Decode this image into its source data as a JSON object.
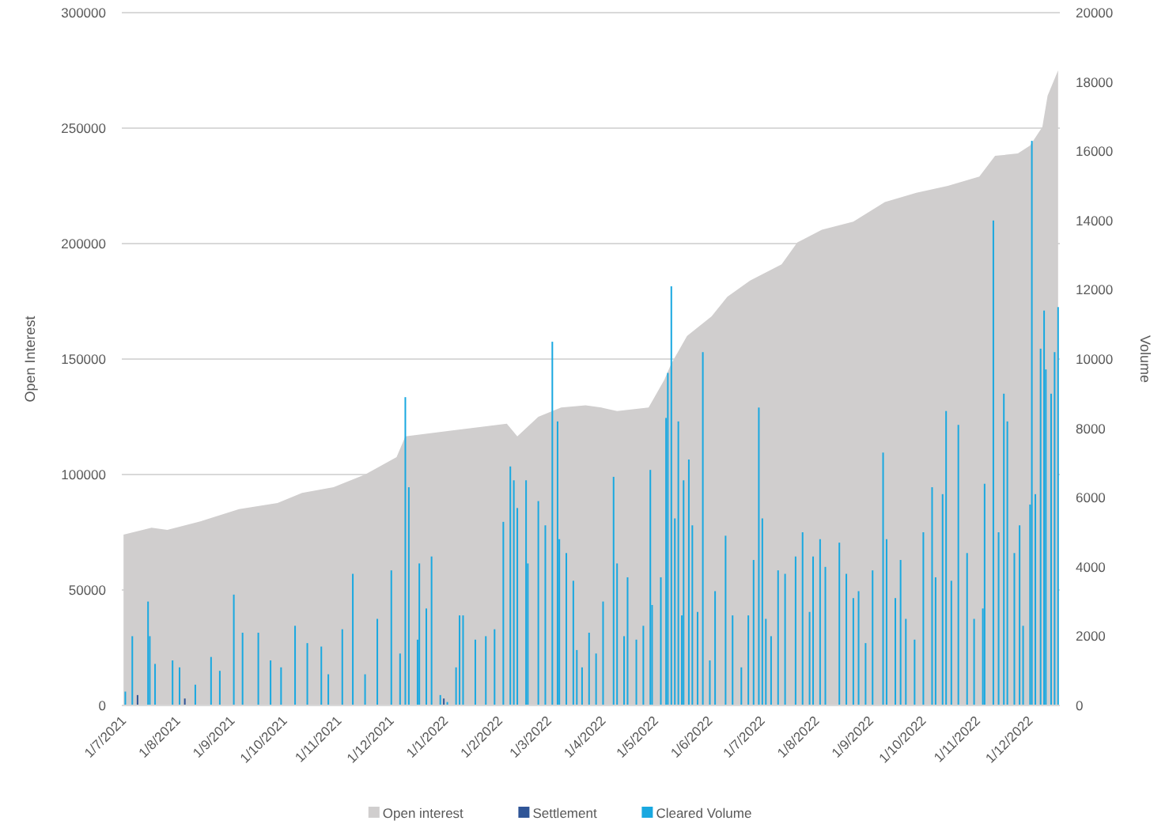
{
  "chart_data": {
    "type": "bar",
    "ylabel": "Open Interest",
    "y2label": "Volume",
    "xlim": [
      "2021-06-30",
      "2022-12-18"
    ],
    "xticks": [
      {
        "value": "2021-07-01",
        "label": "1/7/2021"
      },
      {
        "value": "2021-08-01",
        "label": "1/8/2021"
      },
      {
        "value": "2021-09-01",
        "label": "1/9/2021"
      },
      {
        "value": "2021-10-01",
        "label": "1/10/2021"
      },
      {
        "value": "2021-11-01",
        "label": "1/11/2021"
      },
      {
        "value": "2021-12-01",
        "label": "1/12/2021"
      },
      {
        "value": "2022-01-01",
        "label": "1/1/2022"
      },
      {
        "value": "2022-02-01",
        "label": "1/2/2022"
      },
      {
        "value": "2022-03-01",
        "label": "1/3/2022"
      },
      {
        "value": "2022-04-01",
        "label": "1/4/2022"
      },
      {
        "value": "2022-05-01",
        "label": "1/5/2022"
      },
      {
        "value": "2022-06-01",
        "label": "1/6/2022"
      },
      {
        "value": "2022-07-01",
        "label": "1/7/2022"
      },
      {
        "value": "2022-08-01",
        "label": "1/8/2022"
      },
      {
        "value": "2022-09-01",
        "label": "1/9/2022"
      },
      {
        "value": "2022-10-01",
        "label": "1/10/2022"
      },
      {
        "value": "2022-11-01",
        "label": "1/11/2022"
      },
      {
        "value": "2022-12-01",
        "label": "1/12/2022"
      }
    ],
    "ylim": [
      0,
      300000
    ],
    "yticks": [
      0,
      50000,
      100000,
      150000,
      200000,
      250000,
      300000
    ],
    "y2lim": [
      0,
      20000
    ],
    "y2ticks": [
      0,
      2000,
      4000,
      6000,
      8000,
      10000,
      12000,
      14000,
      16000,
      18000,
      20000
    ],
    "grid": "y",
    "legend": "bottom",
    "series": [
      {
        "name": "Open interest",
        "type": "area",
        "color": "#d0cece",
        "x": [
          "2021-07-01",
          "2021-07-17",
          "2021-07-26",
          "2021-08-13",
          "2021-09-05",
          "2021-09-27",
          "2021-10-11",
          "2021-10-29",
          "2021-11-16",
          "2021-12-04",
          "2021-12-09",
          "2022-01-04",
          "2022-02-05",
          "2022-02-11",
          "2022-02-23",
          "2022-03-08",
          "2022-03-22",
          "2022-03-31",
          "2022-04-09",
          "2022-04-27",
          "2022-05-06",
          "2022-05-10",
          "2022-05-19",
          "2022-06-02",
          "2022-06-11",
          "2022-06-24",
          "2022-07-12",
          "2022-07-21",
          "2022-08-04",
          "2022-08-22",
          "2022-09-09",
          "2022-09-27",
          "2022-10-15",
          "2022-11-02",
          "2022-11-11",
          "2022-11-24",
          "2022-12-01",
          "2022-12-08",
          "2022-12-11",
          "2022-12-17"
        ],
        "values": [
          74000,
          77000,
          76000,
          79500,
          85000,
          87700,
          92000,
          94500,
          100000,
          107500,
          116500,
          119000,
          122000,
          116500,
          125000,
          129000,
          130000,
          129000,
          127500,
          129000,
          141000,
          148000,
          160000,
          168500,
          177000,
          184000,
          191000,
          200500,
          206000,
          209500,
          218000,
          222000,
          225000,
          229000,
          238000,
          239000,
          242500,
          250500,
          264000,
          275000
        ]
      },
      {
        "name": "Settlement",
        "axis": "y2",
        "color": "#2f5597",
        "x": [
          "2021-07-09",
          "2021-08-05",
          "2021-12-31"
        ],
        "values": [
          300,
          200,
          200
        ]
      },
      {
        "name": "Cleared Volume",
        "axis": "y2",
        "color": "#19a8e0",
        "x": [
          "2021-07-02",
          "2021-07-06",
          "2021-07-15",
          "2021-07-16",
          "2021-07-19",
          "2021-07-29",
          "2021-08-02",
          "2021-08-11",
          "2021-08-20",
          "2021-08-25",
          "2021-09-02",
          "2021-09-07",
          "2021-09-16",
          "2021-09-23",
          "2021-09-29",
          "2021-10-07",
          "2021-10-14",
          "2021-10-22",
          "2021-10-26",
          "2021-11-03",
          "2021-11-09",
          "2021-11-16",
          "2021-11-23",
          "2021-12-01",
          "2021-12-06",
          "2021-12-09",
          "2021-12-11",
          "2021-12-16",
          "2021-12-17",
          "2021-12-21",
          "2021-12-24",
          "2021-12-29",
          "2022-01-02",
          "2022-01-07",
          "2022-01-09",
          "2022-01-11",
          "2022-01-18",
          "2022-01-24",
          "2022-01-29",
          "2022-02-03",
          "2022-02-07",
          "2022-02-09",
          "2022-02-11",
          "2022-02-16",
          "2022-02-17",
          "2022-02-23",
          "2022-02-27",
          "2022-03-03",
          "2022-03-06",
          "2022-03-07",
          "2022-03-11",
          "2022-03-15",
          "2022-03-17",
          "2022-03-20",
          "2022-03-24",
          "2022-03-28",
          "2022-04-01",
          "2022-04-07",
          "2022-04-09",
          "2022-04-13",
          "2022-04-15",
          "2022-04-20",
          "2022-04-24",
          "2022-04-28",
          "2022-04-29",
          "2022-05-04",
          "2022-05-07",
          "2022-05-08",
          "2022-05-10",
          "2022-05-12",
          "2022-05-14",
          "2022-05-16",
          "2022-05-17",
          "2022-05-20",
          "2022-05-22",
          "2022-05-25",
          "2022-05-28",
          "2022-06-01",
          "2022-06-04",
          "2022-06-10",
          "2022-06-14",
          "2022-06-19",
          "2022-06-23",
          "2022-06-26",
          "2022-06-29",
          "2022-07-01",
          "2022-07-03",
          "2022-07-06",
          "2022-07-10",
          "2022-07-14",
          "2022-07-20",
          "2022-07-24",
          "2022-07-28",
          "2022-07-30",
          "2022-08-03",
          "2022-08-06",
          "2022-08-14",
          "2022-08-18",
          "2022-08-22",
          "2022-08-25",
          "2022-08-29",
          "2022-09-02",
          "2022-09-08",
          "2022-09-10",
          "2022-09-15",
          "2022-09-18",
          "2022-09-21",
          "2022-09-26",
          "2022-10-01",
          "2022-10-06",
          "2022-10-08",
          "2022-10-12",
          "2022-10-14",
          "2022-10-17",
          "2022-10-21",
          "2022-10-26",
          "2022-10-30",
          "2022-11-04",
          "2022-11-05",
          "2022-11-10",
          "2022-11-13",
          "2022-11-16",
          "2022-11-18",
          "2022-11-22",
          "2022-11-25",
          "2022-11-27",
          "2022-12-01",
          "2022-12-02",
          "2022-12-04",
          "2022-12-07",
          "2022-12-09",
          "2022-12-10",
          "2022-12-13",
          "2022-12-15",
          "2022-12-17"
        ],
        "values": [
          400,
          2000,
          3000,
          2000,
          1200,
          1300,
          1100,
          600,
          1400,
          1000,
          3200,
          2100,
          2100,
          1300,
          1100,
          2300,
          1800,
          1700,
          900,
          2200,
          3800,
          900,
          2500,
          3900,
          1500,
          8900,
          6300,
          1900,
          4100,
          2800,
          4300,
          300,
          100,
          1100,
          2600,
          2600,
          1900,
          2000,
          2200,
          5300,
          6900,
          6500,
          5700,
          6500,
          4100,
          5900,
          5200,
          10500,
          8200,
          4800,
          4400,
          3600,
          1600,
          1100,
          2100,
          1500,
          3000,
          6600,
          4100,
          2000,
          3700,
          1900,
          2300,
          6800,
          2900,
          3700,
          8300,
          9600,
          12100,
          5400,
          8200,
          2600,
          6500,
          7100,
          5200,
          2700,
          10200,
          1300,
          3300,
          4900,
          2600,
          1100,
          2600,
          4200,
          8600,
          5400,
          2500,
          2000,
          3900,
          3800,
          4300,
          5000,
          2700,
          4300,
          4800,
          4000,
          4700,
          3800,
          3100,
          3300,
          1800,
          3900,
          7300,
          4800,
          3100,
          4200,
          2500,
          1900,
          5000,
          6300,
          3700,
          6100,
          8500,
          3600,
          8100,
          4400,
          2500,
          2800,
          6400,
          14000,
          5000,
          9000,
          8200,
          4400,
          5200,
          2300,
          5800,
          16300,
          6100,
          10300,
          11400,
          9700,
          9000,
          10200,
          11500
        ]
      }
    ]
  }
}
